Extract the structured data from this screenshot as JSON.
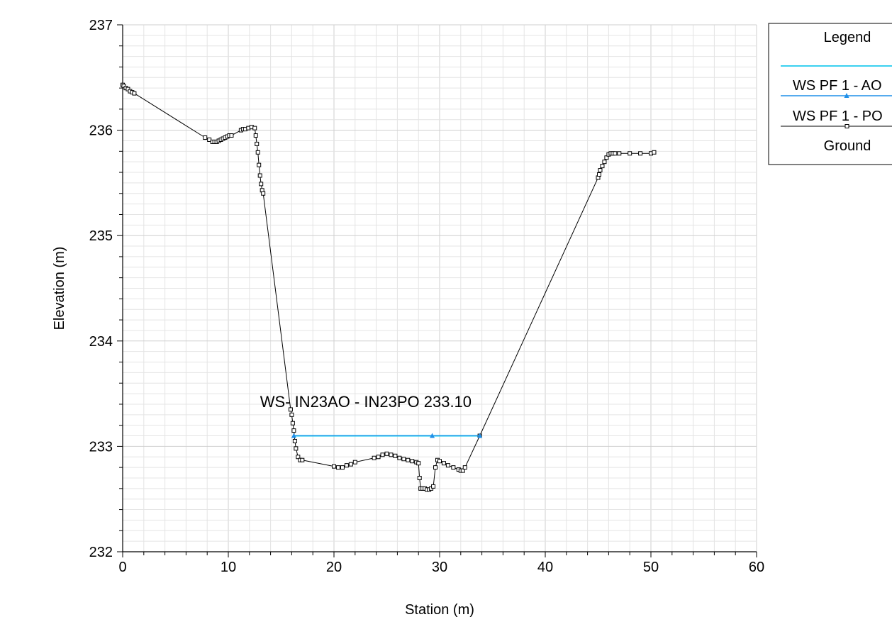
{
  "chart_data": {
    "type": "line",
    "xlabel": "Station (m)",
    "ylabel": "Elevation (m)",
    "xlim": [
      0,
      60
    ],
    "ylim": [
      232,
      237
    ],
    "x_ticks": [
      "0",
      "10",
      "20",
      "30",
      "40",
      "50",
      "60"
    ],
    "y_ticks": [
      "232",
      "233",
      "234",
      "235",
      "236",
      "237"
    ],
    "grid": true,
    "annotation": "WS- IN23AO - IN23PO 233.10",
    "legend": {
      "title": "Legend",
      "position": "top-right",
      "entries": [
        "WS PF 1 - AO",
        "WS PF 1 - PO",
        "Ground"
      ]
    },
    "series": [
      {
        "name": "WS PF 1 - AO",
        "color": "#1f8fe8",
        "marker": "triangle",
        "x": [
          16.2,
          29.3,
          33.8
        ],
        "y": [
          233.1,
          233.1,
          233.1
        ]
      },
      {
        "name": "WS PF 1 - PO",
        "color": "#3ad0f0",
        "marker": "none",
        "x": [
          16.2,
          33.8
        ],
        "y": [
          233.1,
          233.1
        ]
      },
      {
        "name": "Ground",
        "color": "#000000",
        "marker": "square",
        "x": [
          0,
          0.1,
          0.3,
          0.5,
          0.7,
          0.9,
          1.1,
          7.8,
          8.2,
          8.5,
          8.7,
          8.9,
          9.1,
          9.3,
          9.5,
          9.7,
          9.9,
          10.1,
          10.3,
          11.2,
          11.4,
          11.6,
          11.9,
          12.2,
          12.5,
          12.6,
          12.7,
          12.8,
          12.9,
          13.0,
          13.1,
          13.2,
          13.3,
          15.9,
          16.0,
          16.1,
          16.2,
          16.3,
          16.4,
          16.6,
          16.8,
          17.0,
          20.0,
          20.4,
          20.8,
          21.2,
          21.6,
          22.0,
          23.8,
          24.2,
          24.6,
          25.0,
          25.4,
          25.8,
          26.2,
          26.6,
          27.0,
          27.4,
          27.8,
          28.0,
          28.1,
          28.2,
          28.4,
          28.6,
          28.8,
          29.0,
          29.2,
          29.4,
          29.6,
          29.8,
          30.0,
          30.4,
          30.8,
          31.3,
          31.8,
          32.0,
          32.2,
          32.4,
          33.8,
          45.0,
          45.1,
          45.2,
          45.4,
          45.6,
          45.8,
          46.0,
          46.2,
          46.4,
          46.6,
          47.0,
          48.0,
          49.0,
          50.0,
          50.3
        ],
        "y": [
          236.43,
          236.42,
          236.4,
          236.39,
          236.37,
          236.36,
          236.35,
          235.93,
          235.91,
          235.89,
          235.89,
          235.89,
          235.9,
          235.91,
          235.92,
          235.93,
          235.94,
          235.95,
          235.95,
          236.0,
          236.01,
          236.01,
          236.02,
          236.03,
          236.02,
          235.95,
          235.87,
          235.79,
          235.67,
          235.57,
          235.49,
          235.43,
          235.4,
          233.35,
          233.3,
          233.22,
          233.15,
          233.05,
          232.98,
          232.9,
          232.87,
          232.87,
          232.81,
          232.8,
          232.8,
          232.82,
          232.83,
          232.85,
          232.89,
          232.9,
          232.92,
          232.93,
          232.92,
          232.91,
          232.89,
          232.88,
          232.87,
          232.86,
          232.85,
          232.84,
          232.7,
          232.6,
          232.6,
          232.6,
          232.59,
          232.59,
          232.6,
          232.62,
          232.8,
          232.87,
          232.86,
          232.84,
          232.82,
          232.8,
          232.78,
          232.77,
          232.77,
          232.8,
          233.1,
          235.55,
          235.58,
          235.62,
          235.66,
          235.7,
          235.74,
          235.77,
          235.78,
          235.78,
          235.78,
          235.78,
          235.78,
          235.78,
          235.78,
          235.79
        ]
      }
    ]
  }
}
